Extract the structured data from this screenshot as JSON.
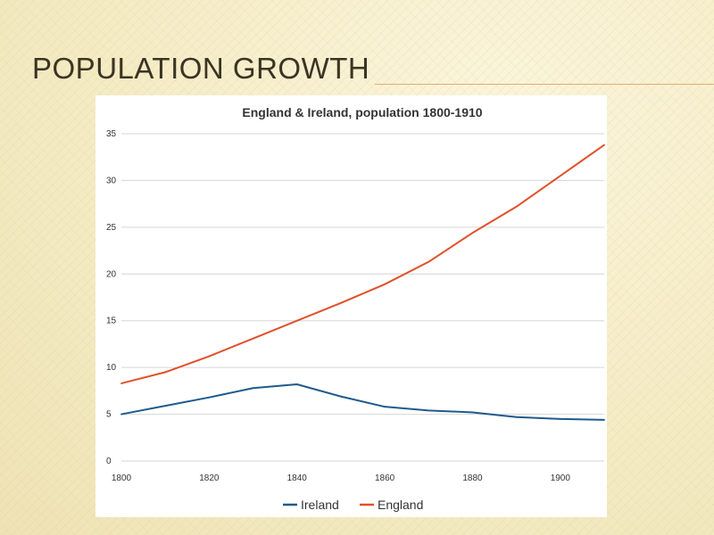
{
  "slide": {
    "title": "POPULATION GROWTH"
  },
  "chart_data": {
    "type": "line",
    "title": "England & Ireland, population 1800-1910",
    "xlabel": "",
    "ylabel": "",
    "xlim": [
      1800,
      1910
    ],
    "ylim": [
      0,
      35
    ],
    "x_ticks": [
      1800,
      1820,
      1840,
      1860,
      1880,
      1900
    ],
    "y_ticks": [
      0,
      5,
      10,
      15,
      20,
      25,
      30,
      35
    ],
    "grid": true,
    "legend_position": "bottom",
    "series": [
      {
        "name": "Ireland",
        "color": "#1f5a8c",
        "x": [
          1800,
          1810,
          1820,
          1830,
          1840,
          1850,
          1860,
          1870,
          1880,
          1890,
          1900,
          1910
        ],
        "values": [
          5.0,
          5.9,
          6.8,
          7.8,
          8.2,
          6.9,
          5.8,
          5.4,
          5.2,
          4.7,
          4.5,
          4.4
        ]
      },
      {
        "name": "England",
        "color": "#e0502a",
        "x": [
          1800,
          1810,
          1820,
          1830,
          1840,
          1850,
          1860,
          1870,
          1880,
          1890,
          1900,
          1910
        ],
        "values": [
          8.3,
          9.5,
          11.2,
          13.1,
          15.0,
          16.9,
          18.9,
          21.3,
          24.4,
          27.2,
          30.5,
          33.8
        ]
      }
    ]
  }
}
